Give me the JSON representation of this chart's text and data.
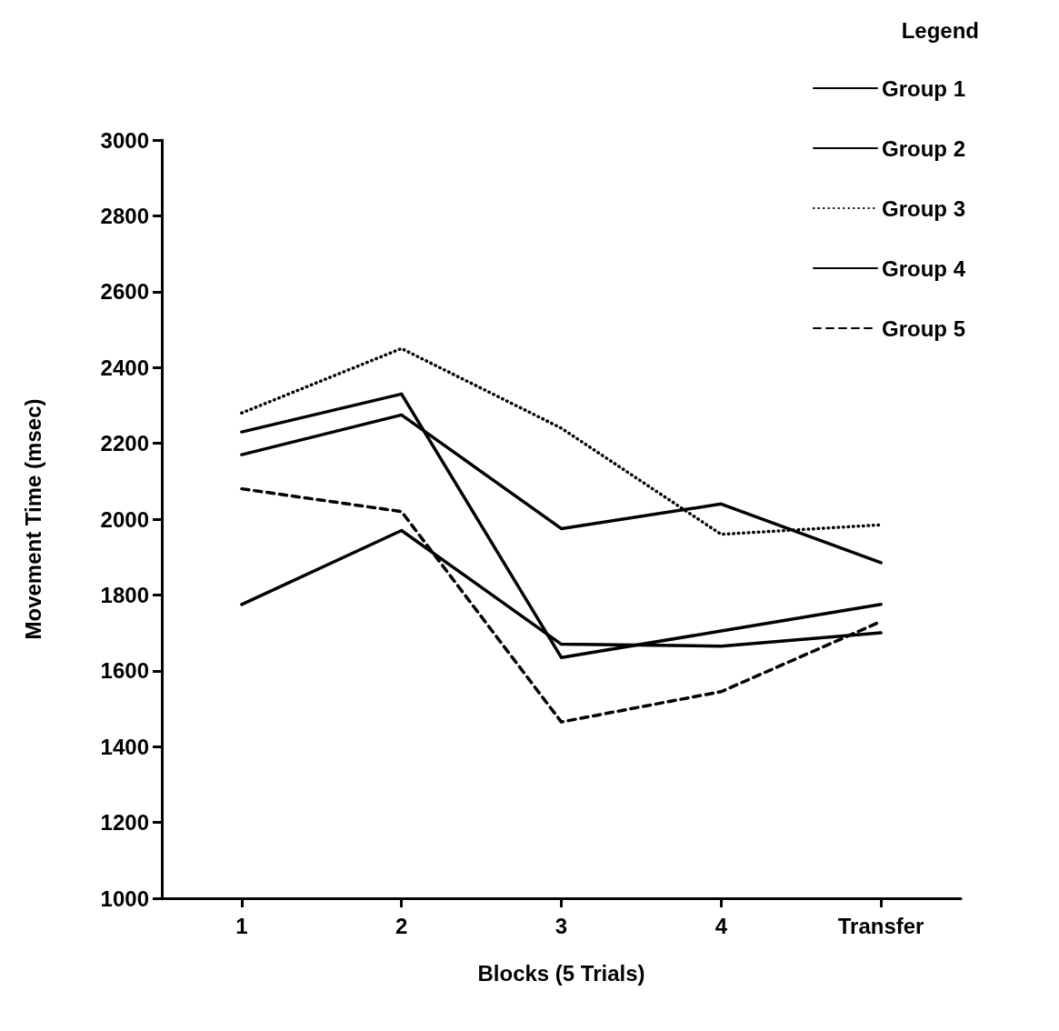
{
  "chart_data": {
    "type": "line",
    "xlabel": "Blocks (5 Trials)",
    "ylabel": "Movement Time (msec)",
    "legend_title": "Legend",
    "categories": [
      "1",
      "2",
      "3",
      "4",
      "Transfer"
    ],
    "series": [
      {
        "name": "Group 1",
        "color": "#000000",
        "line_style": "solid",
        "values": [
          2170,
          2275,
          1975,
          2040,
          1885
        ]
      },
      {
        "name": "Group 2",
        "color": "#000000",
        "line_style": "solid",
        "values": [
          2230,
          2330,
          1635,
          1705,
          1775
        ]
      },
      {
        "name": "Group 3",
        "color": "#000000",
        "line_style": "dotted",
        "values": [
          2280,
          2450,
          2240,
          1960,
          1985
        ]
      },
      {
        "name": "Group 4",
        "color": "#000000",
        "line_style": "solid",
        "values": [
          1775,
          1970,
          1670,
          1665,
          1700
        ]
      },
      {
        "name": "Group 5",
        "color": "#000000",
        "line_style": "dashed",
        "values": [
          2080,
          2020,
          1465,
          1545,
          1730
        ]
      }
    ],
    "ylim": [
      1000,
      3000
    ],
    "yticks": [
      1000,
      1200,
      1400,
      1600,
      1800,
      2000,
      2200,
      2400,
      2600,
      2800,
      3000
    ],
    "grid": false,
    "legend": "top right",
    "marker": "none"
  }
}
